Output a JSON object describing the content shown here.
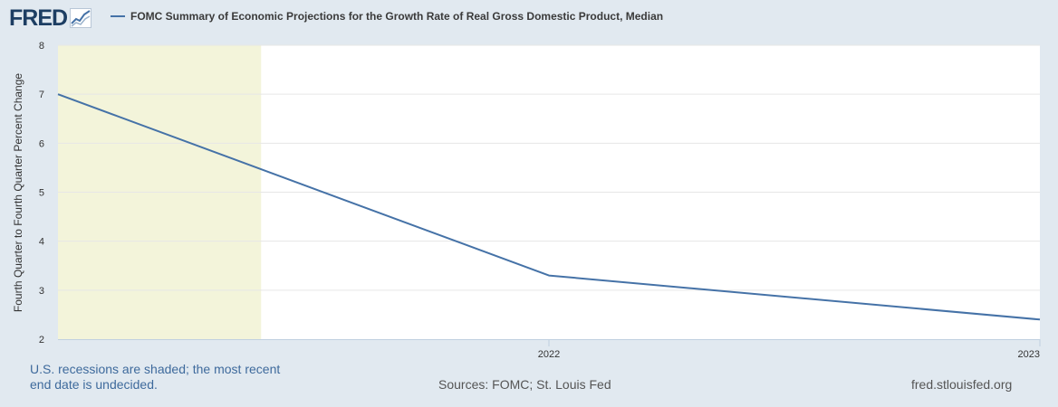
{
  "logo": {
    "text": "FRED",
    "icon": "chart-line-icon"
  },
  "legend": {
    "label": "FOMC Summary of Economic Projections for the Growth Rate of Real Gross Domestic Product, Median"
  },
  "colors": {
    "background": "#e1e9f0",
    "plot": "#ffffff",
    "series": "#4572a7",
    "recession": "#f3f4da",
    "logo": "#1d3e63"
  },
  "chart_data": {
    "type": "line",
    "title": "",
    "xlabel": "",
    "ylabel": "Fourth Quarter to Fourth Quarter Percent Change",
    "ylim": [
      2,
      8
    ],
    "yticks": [
      "8",
      "7",
      "6",
      "5",
      "4",
      "3",
      "2"
    ],
    "xticks": [
      "2022",
      "2023"
    ],
    "grid": true,
    "series": [
      {
        "name": "FOMC Summary of Economic Projections for the Growth Rate of Real Gross Domestic Product, Median",
        "x": [
          "2021-01-01",
          "2022-01-01",
          "2023-01-01"
        ],
        "values": [
          7.0,
          3.3,
          2.4
        ]
      }
    ],
    "recessions": [
      {
        "start": "2021-01-01",
        "end": "2021-06-01"
      }
    ]
  },
  "footer": {
    "note": "U.S. recessions are shaded; the most recent end date is undecided.",
    "sources": "Sources: FOMC; St. Louis Fed",
    "site": "fred.stlouisfed.org"
  }
}
